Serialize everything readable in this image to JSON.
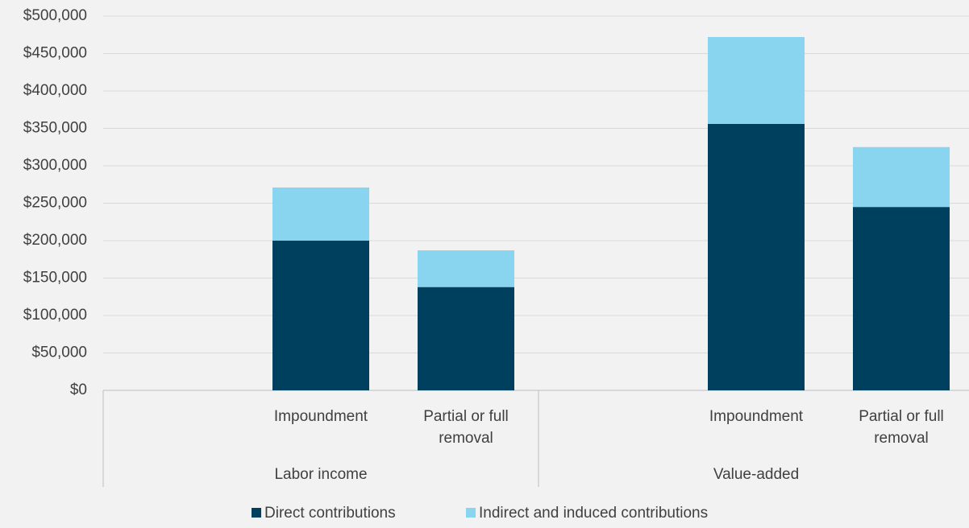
{
  "chart_data": {
    "type": "stacked_bar",
    "categories": [
      null,
      "Impoundment",
      "Partial or full removal",
      null,
      "Impoundment",
      "Partial or full removal"
    ],
    "groups": [
      "Labor income",
      "Value-added"
    ],
    "series": [
      {
        "name": "Direct contributions",
        "color": "#00405f",
        "values": [
          null,
          200000,
          138000,
          null,
          356000,
          245000
        ]
      },
      {
        "name": "Indirect and induced contributions",
        "color": "#89d4ee",
        "values": [
          null,
          71000,
          49000,
          null,
          116000,
          80000
        ]
      }
    ],
    "ylim": [
      0,
      500000
    ],
    "yticks": [
      {
        "value": 0,
        "label": "$0"
      },
      {
        "value": 50000,
        "label": "$50,000"
      },
      {
        "value": 100000,
        "label": "$100,000"
      },
      {
        "value": 150000,
        "label": "$150,000"
      },
      {
        "value": 200000,
        "label": "$200,000"
      },
      {
        "value": 250000,
        "label": "$250,000"
      },
      {
        "value": 300000,
        "label": "$300,000"
      },
      {
        "value": 350000,
        "label": "$350,000"
      },
      {
        "value": 400000,
        "label": "$400,000"
      },
      {
        "value": 450000,
        "label": "$450,000"
      },
      {
        "value": 500000,
        "label": "$500,000"
      }
    ],
    "grid": true,
    "legend": "bottom"
  }
}
